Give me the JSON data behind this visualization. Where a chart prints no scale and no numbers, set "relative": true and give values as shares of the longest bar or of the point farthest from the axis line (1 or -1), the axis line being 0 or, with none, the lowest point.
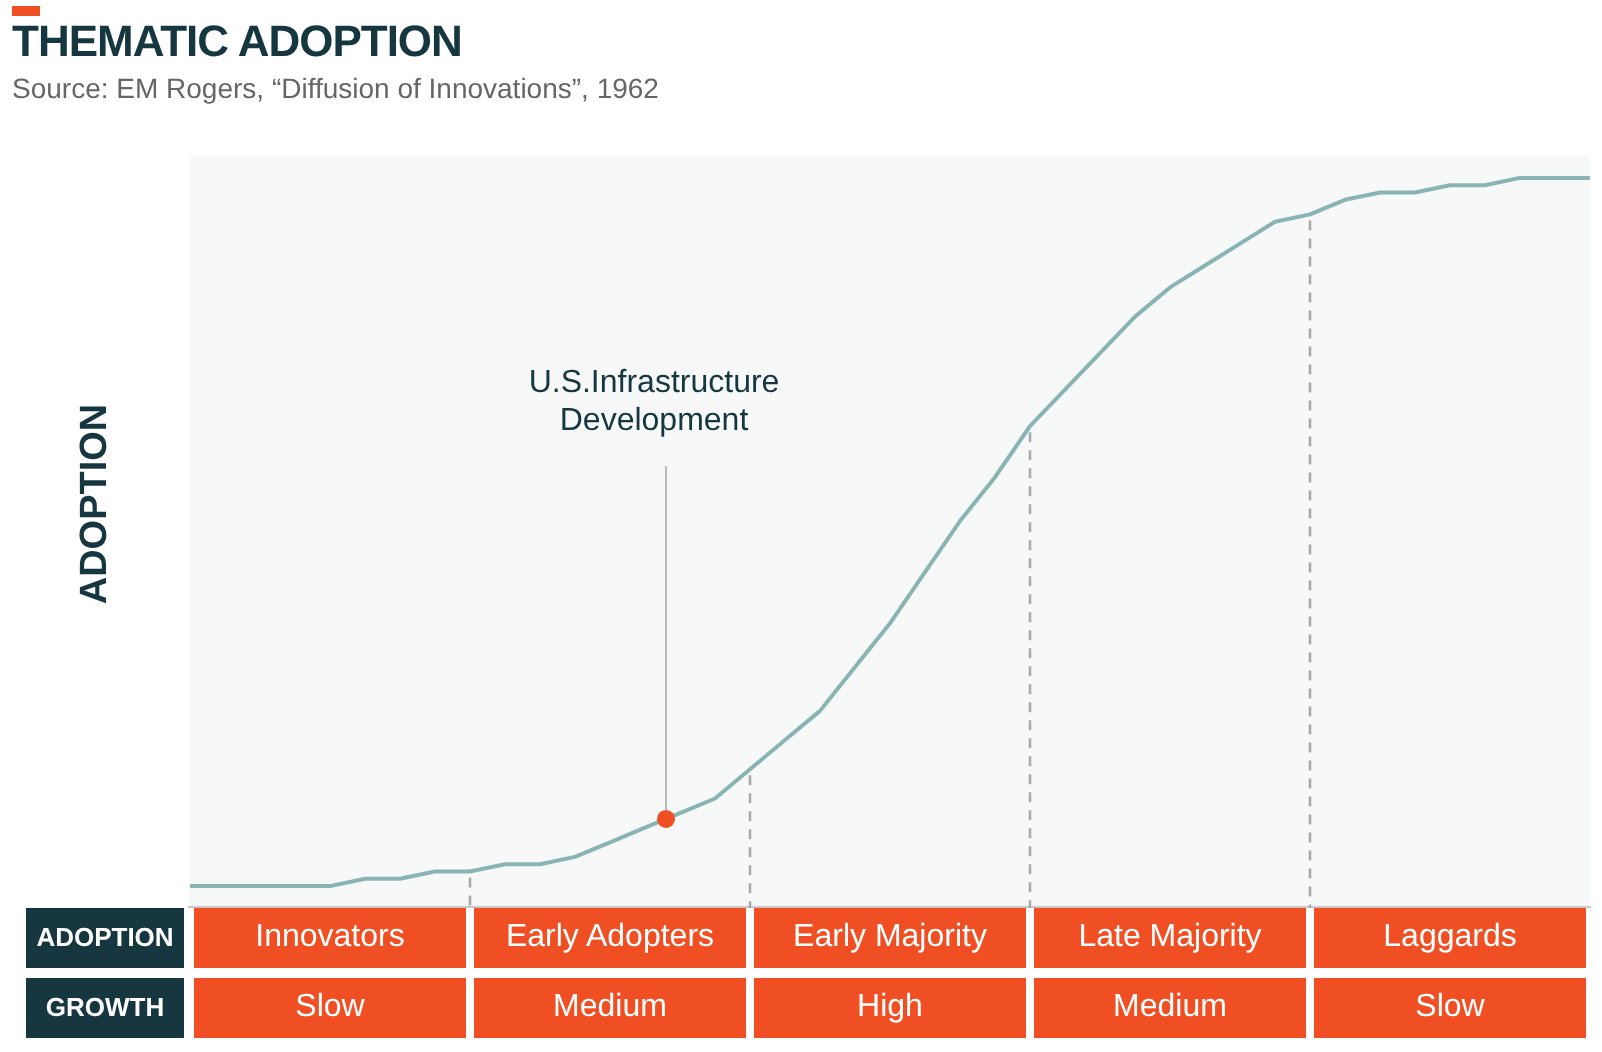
{
  "chart_data": {
    "type": "line",
    "title": "THEMATIC ADOPTION",
    "ylabel": "ADOPTION",
    "relative": true,
    "grid": false,
    "legend": false,
    "categories": [
      null,
      null,
      null,
      null,
      null,
      null,
      null,
      null,
      null,
      null,
      null,
      null,
      null,
      null,
      null,
      null,
      null,
      null,
      null,
      null,
      null,
      null,
      null,
      null,
      null,
      null,
      null,
      null,
      null,
      null,
      null,
      null,
      null,
      null,
      null,
      null,
      null,
      null,
      null,
      null,
      null
    ],
    "series": [
      {
        "color": "#8ab4b4",
        "values": [
          0.03,
          0.03,
          0.03,
          0.03,
          0.03,
          0.04,
          0.04,
          0.05,
          0.05,
          0.06,
          0.06,
          0.07,
          0.09,
          0.11,
          0.13,
          0.15,
          0.19,
          0.23,
          0.27,
          0.33,
          0.39,
          0.46,
          0.53,
          0.59,
          0.66,
          0.71,
          0.76,
          0.81,
          0.85,
          0.88,
          0.91,
          0.94,
          0.95,
          0.97,
          0.98,
          0.98,
          0.99,
          0.99,
          1.0,
          1.0,
          1.0
        ]
      }
    ],
    "annotations": [
      "Source: EM Rogers, “Diffusion of Innovations”, 1962",
      "U.S.Infrastructure Development",
      "ADOPTION",
      "Innovators",
      "Early Adopters",
      "Early Majority",
      "Late Majority",
      "Laggards",
      "GROWTH",
      "Slow",
      "Medium",
      "High",
      "Medium",
      "Slow"
    ]
  }
}
